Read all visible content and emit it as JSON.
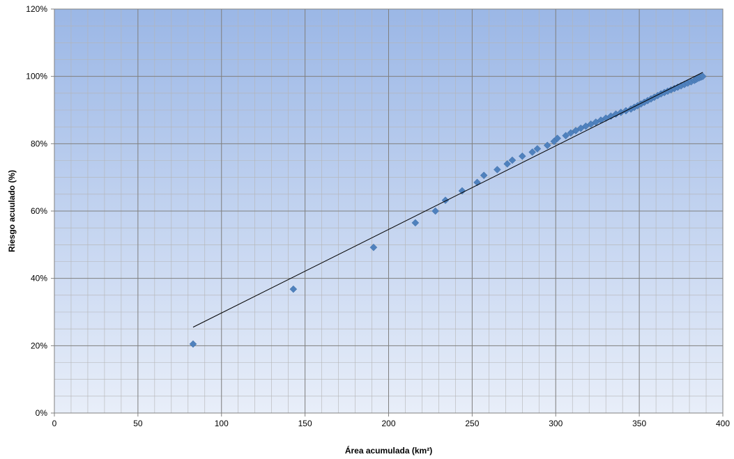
{
  "chart_data": {
    "type": "scatter",
    "title": "",
    "xlabel": "Área acumulada (km²)",
    "ylabel": "Riesgo acuulado (%)",
    "xlim": [
      0,
      400
    ],
    "ylim": [
      0,
      120
    ],
    "x_ticks": [
      "0",
      "50",
      "100",
      "150",
      "200",
      "250",
      "300",
      "350",
      "400"
    ],
    "y_ticks": [
      "0%",
      "20%",
      "40%",
      "60%",
      "80%",
      "100%",
      "120%"
    ],
    "grid": "major and minor",
    "legend": "none",
    "background": {
      "top": "#9bb7e6",
      "bottom": "#e8eef9"
    },
    "marker_color": "#4f81bd",
    "series": [
      {
        "marker": "diamond",
        "points": [
          [
            83,
            20.5
          ],
          [
            143,
            36.8
          ],
          [
            191,
            49.2
          ],
          [
            216,
            56.5
          ],
          [
            228,
            60.0
          ],
          [
            234,
            63.2
          ],
          [
            244,
            66.0
          ],
          [
            253,
            68.5
          ],
          [
            257,
            70.6
          ],
          [
            265,
            72.3
          ],
          [
            271,
            74.0
          ],
          [
            274,
            75.1
          ],
          [
            280,
            76.3
          ],
          [
            286,
            77.5
          ],
          [
            289,
            78.5
          ],
          [
            295,
            79.5
          ],
          [
            299,
            80.7
          ],
          [
            301,
            81.6
          ],
          [
            306,
            82.4
          ],
          [
            309,
            83.2
          ],
          [
            312,
            83.9
          ],
          [
            315,
            84.6
          ],
          [
            318,
            85.2
          ],
          [
            321,
            85.8
          ],
          [
            324,
            86.4
          ],
          [
            327,
            87.0
          ],
          [
            330,
            87.6
          ],
          [
            333,
            88.2
          ],
          [
            336,
            88.8
          ],
          [
            339,
            89.3
          ],
          [
            342,
            89.8
          ],
          [
            345,
            90.3
          ],
          [
            347,
            90.8
          ],
          [
            349,
            91.3
          ],
          [
            351,
            91.8
          ],
          [
            353,
            92.3
          ],
          [
            355,
            92.8
          ],
          [
            357,
            93.3
          ],
          [
            359,
            93.8
          ],
          [
            361,
            94.3
          ],
          [
            363,
            94.8
          ],
          [
            365,
            95.2
          ],
          [
            367,
            95.6
          ],
          [
            369,
            96.0
          ],
          [
            371,
            96.4
          ],
          [
            373,
            96.8
          ],
          [
            375,
            97.2
          ],
          [
            377,
            97.6
          ],
          [
            379,
            98.0
          ],
          [
            381,
            98.4
          ],
          [
            383,
            98.8
          ],
          [
            384,
            99.1
          ],
          [
            385,
            99.4
          ],
          [
            386,
            99.6
          ],
          [
            387,
            99.8
          ],
          [
            388,
            100.0
          ]
        ]
      }
    ],
    "trendline": {
      "type": "linear",
      "color": "#000000",
      "from": [
        83,
        25.5
      ],
      "to": [
        388,
        101.2
      ]
    }
  }
}
